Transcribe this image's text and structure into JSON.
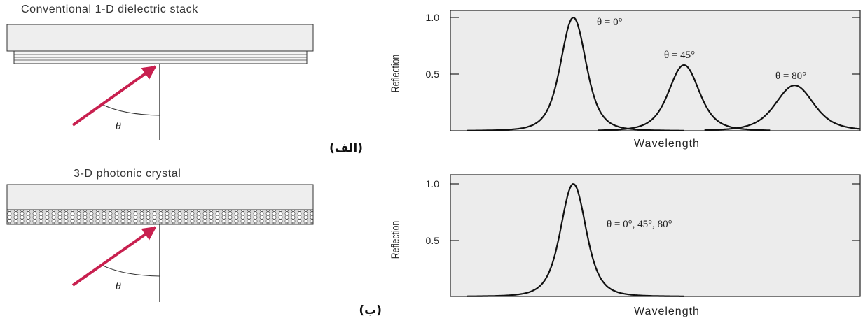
{
  "top": {
    "title": "Conventional 1-D dielectric stack",
    "angle_symbol": "θ",
    "panel_label": "(الف)",
    "chart": {
      "ylabel": "Reflection",
      "xlabel": "Wavelength",
      "yticks": [
        "1.0",
        "0.5"
      ],
      "annotations": [
        "θ = 0°",
        "θ = 45°",
        "θ = 80°"
      ]
    }
  },
  "bottom": {
    "title": "3-D photonic crystal",
    "angle_symbol": "θ",
    "panel_label": "(ب)",
    "chart": {
      "ylabel": "Reflection",
      "xlabel": "Wavelength",
      "yticks": [
        "1.0",
        "0.5"
      ],
      "annotations": [
        "θ = 0°, 45°, 80°"
      ]
    }
  },
  "colors": {
    "arrow": "#c8204f",
    "slab": "#eeeeee",
    "plot_bg": "#ececec"
  },
  "chart_data": [
    {
      "type": "line",
      "ylabel": "Reflection",
      "xlabel": "Wavelength",
      "ylim": [
        0,
        1.0
      ],
      "series": [
        {
          "name": "θ = 0°",
          "peak": 1.0,
          "peak_position": 0.3
        },
        {
          "name": "θ = 45°",
          "peak": 0.58,
          "peak_position": 0.57
        },
        {
          "name": "θ = 80°",
          "peak": 0.4,
          "peak_position": 0.84
        }
      ]
    },
    {
      "type": "line",
      "ylabel": "Reflection",
      "xlabel": "Wavelength",
      "ylim": [
        0,
        1.0
      ],
      "series": [
        {
          "name": "θ = 0°, 45°, 80°",
          "peak": 1.0,
          "peak_position": 0.3
        }
      ]
    }
  ]
}
